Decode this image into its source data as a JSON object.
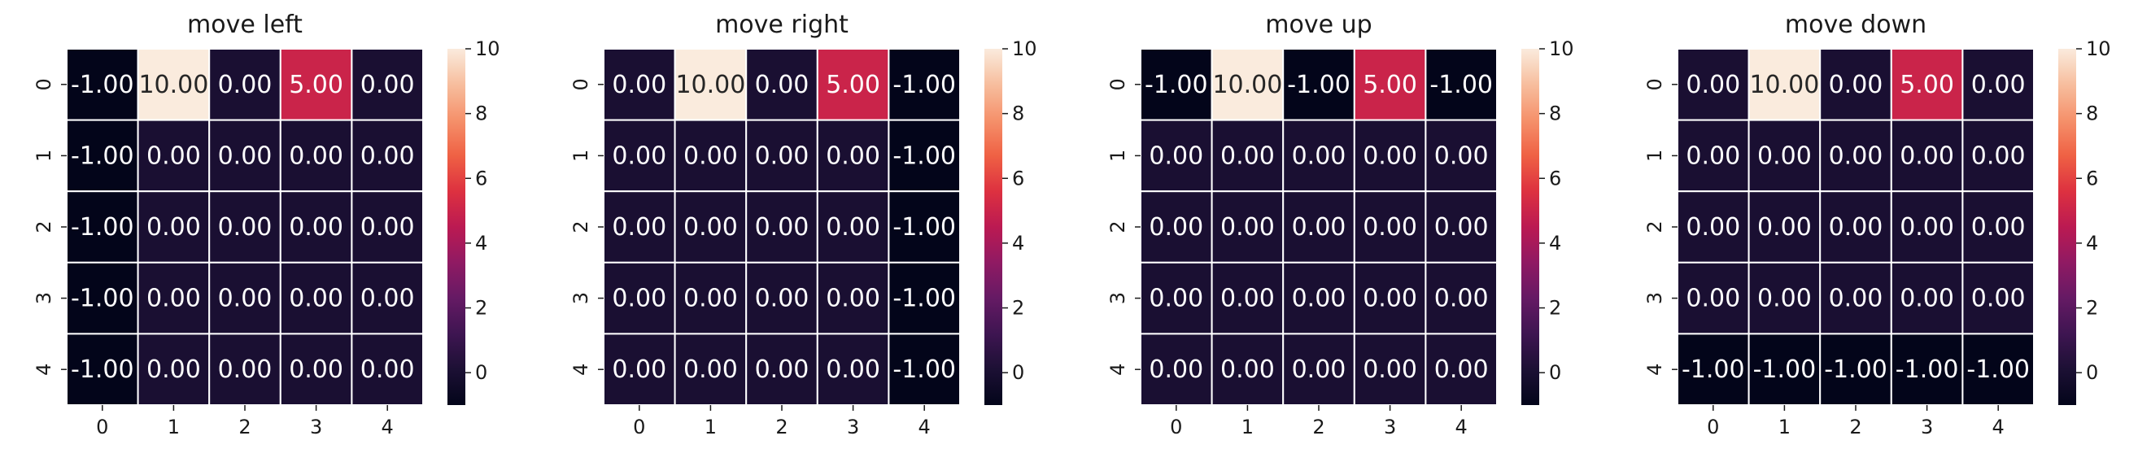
{
  "chart_data": [
    {
      "type": "heatmap",
      "title": "move left",
      "x_ticks": [
        "0",
        "1",
        "2",
        "3",
        "4"
      ],
      "y_ticks": [
        "0",
        "1",
        "2",
        "3",
        "4"
      ],
      "values": [
        [
          -1,
          10,
          0,
          5,
          0
        ],
        [
          -1,
          0,
          0,
          0,
          0
        ],
        [
          -1,
          0,
          0,
          0,
          0
        ],
        [
          -1,
          0,
          0,
          0,
          0
        ],
        [
          -1,
          0,
          0,
          0,
          0
        ]
      ],
      "labels": [
        [
          "-1.00",
          "10.00",
          "0.00",
          "5.00",
          "0.00"
        ],
        [
          "-1.00",
          "0.00",
          "0.00",
          "0.00",
          "0.00"
        ],
        [
          "-1.00",
          "0.00",
          "0.00",
          "0.00",
          "0.00"
        ],
        [
          "-1.00",
          "0.00",
          "0.00",
          "0.00",
          "0.00"
        ],
        [
          "-1.00",
          "0.00",
          "0.00",
          "0.00",
          "0.00"
        ]
      ],
      "colorbar": {
        "ticks": [
          "0",
          "2",
          "4",
          "6",
          "8",
          "10"
        ],
        "range": [
          -1,
          10
        ]
      },
      "colormap": "rocket"
    },
    {
      "type": "heatmap",
      "title": "move right",
      "x_ticks": [
        "0",
        "1",
        "2",
        "3",
        "4"
      ],
      "y_ticks": [
        "0",
        "1",
        "2",
        "3",
        "4"
      ],
      "values": [
        [
          0,
          10,
          0,
          5,
          -1
        ],
        [
          0,
          0,
          0,
          0,
          -1
        ],
        [
          0,
          0,
          0,
          0,
          -1
        ],
        [
          0,
          0,
          0,
          0,
          -1
        ],
        [
          0,
          0,
          0,
          0,
          -1
        ]
      ],
      "labels": [
        [
          "0.00",
          "10.00",
          "0.00",
          "5.00",
          "-1.00"
        ],
        [
          "0.00",
          "0.00",
          "0.00",
          "0.00",
          "-1.00"
        ],
        [
          "0.00",
          "0.00",
          "0.00",
          "0.00",
          "-1.00"
        ],
        [
          "0.00",
          "0.00",
          "0.00",
          "0.00",
          "-1.00"
        ],
        [
          "0.00",
          "0.00",
          "0.00",
          "0.00",
          "-1.00"
        ]
      ],
      "colorbar": {
        "ticks": [
          "0",
          "2",
          "4",
          "6",
          "8",
          "10"
        ],
        "range": [
          -1,
          10
        ]
      },
      "colormap": "rocket"
    },
    {
      "type": "heatmap",
      "title": "move up",
      "x_ticks": [
        "0",
        "1",
        "2",
        "3",
        "4"
      ],
      "y_ticks": [
        "0",
        "1",
        "2",
        "3",
        "4"
      ],
      "values": [
        [
          -1,
          10,
          -1,
          5,
          -1
        ],
        [
          0,
          0,
          0,
          0,
          0
        ],
        [
          0,
          0,
          0,
          0,
          0
        ],
        [
          0,
          0,
          0,
          0,
          0
        ],
        [
          0,
          0,
          0,
          0,
          0
        ]
      ],
      "labels": [
        [
          "-1.00",
          "10.00",
          "-1.00",
          "5.00",
          "-1.00"
        ],
        [
          "0.00",
          "0.00",
          "0.00",
          "0.00",
          "0.00"
        ],
        [
          "0.00",
          "0.00",
          "0.00",
          "0.00",
          "0.00"
        ],
        [
          "0.00",
          "0.00",
          "0.00",
          "0.00",
          "0.00"
        ],
        [
          "0.00",
          "0.00",
          "0.00",
          "0.00",
          "0.00"
        ]
      ],
      "colorbar": {
        "ticks": [
          "0",
          "2",
          "4",
          "6",
          "8",
          "10"
        ],
        "range": [
          -1,
          10
        ]
      },
      "colormap": "rocket"
    },
    {
      "type": "heatmap",
      "title": "move down",
      "x_ticks": [
        "0",
        "1",
        "2",
        "3",
        "4"
      ],
      "y_ticks": [
        "0",
        "1",
        "2",
        "3",
        "4"
      ],
      "values": [
        [
          0,
          10,
          0,
          5,
          0
        ],
        [
          0,
          0,
          0,
          0,
          0
        ],
        [
          0,
          0,
          0,
          0,
          0
        ],
        [
          0,
          0,
          0,
          0,
          0
        ],
        [
          -1,
          -1,
          -1,
          -1,
          -1
        ]
      ],
      "labels": [
        [
          "0.00",
          "10.00",
          "0.00",
          "5.00",
          "0.00"
        ],
        [
          "0.00",
          "0.00",
          "0.00",
          "0.00",
          "0.00"
        ],
        [
          "0.00",
          "0.00",
          "0.00",
          "0.00",
          "0.00"
        ],
        [
          "0.00",
          "0.00",
          "0.00",
          "0.00",
          "0.00"
        ],
        [
          "-1.00",
          "-1.00",
          "-1.00",
          "-1.00",
          "-1.00"
        ]
      ],
      "colorbar": {
        "ticks": [
          "0",
          "2",
          "4",
          "6",
          "8",
          "10"
        ],
        "range": [
          -1,
          10
        ]
      },
      "colormap": "rocket"
    }
  ]
}
